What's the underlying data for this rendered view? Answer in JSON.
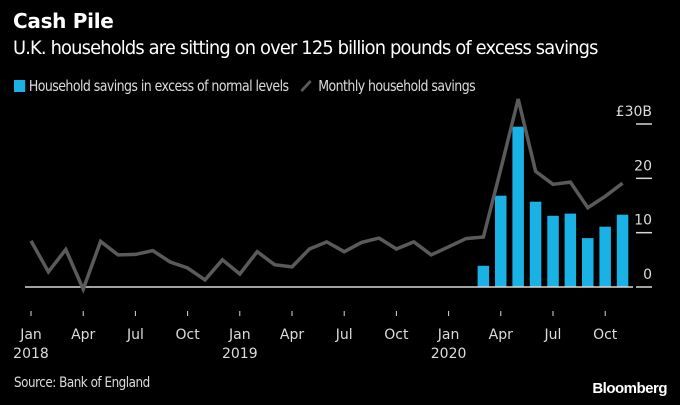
{
  "chart_data": {
    "type": "bar",
    "title": "Cash Pile",
    "subtitle": "U.K. households are sitting on over 125 billion pounds of excess savings",
    "xlabel": "",
    "ylabel": "",
    "ylim": [
      0,
      30
    ],
    "y_axis_position": "right",
    "y_ticks": [
      {
        "value": 30,
        "label": "£30B"
      },
      {
        "value": 20,
        "label": "20"
      },
      {
        "value": 10,
        "label": "10"
      },
      {
        "value": 0,
        "label": "0"
      }
    ],
    "x_ticks": [
      {
        "month_index": 0,
        "label": "Jan",
        "year": "2018"
      },
      {
        "month_index": 3,
        "label": "Apr",
        "year": ""
      },
      {
        "month_index": 6,
        "label": "Jul",
        "year": ""
      },
      {
        "month_index": 9,
        "label": "Oct",
        "year": ""
      },
      {
        "month_index": 12,
        "label": "Jan",
        "year": "2019"
      },
      {
        "month_index": 15,
        "label": "Apr",
        "year": ""
      },
      {
        "month_index": 18,
        "label": "Jul",
        "year": ""
      },
      {
        "month_index": 21,
        "label": "Oct",
        "year": ""
      },
      {
        "month_index": 24,
        "label": "Jan",
        "year": "2020"
      },
      {
        "month_index": 27,
        "label": "Apr",
        "year": ""
      },
      {
        "month_index": 30,
        "label": "Jul",
        "year": ""
      },
      {
        "month_index": 33,
        "label": "Oct",
        "year": ""
      }
    ],
    "x_range_months": [
      "2018-01",
      "2020-11"
    ],
    "legend_position": "top-left",
    "series": [
      {
        "name": "Household savings in excess of normal levels",
        "type": "bar",
        "color": "#1ab1e5",
        "x": [
          "2020-03",
          "2020-04",
          "2020-05",
          "2020-06",
          "2020-07",
          "2020-08",
          "2020-09",
          "2020-10",
          "2020-11"
        ],
        "month_index": [
          26,
          27,
          28,
          29,
          30,
          31,
          32,
          33,
          34
        ],
        "values": [
          3.9,
          16.8,
          29.5,
          15.7,
          13.1,
          13.5,
          9.0,
          11.1,
          13.3
        ]
      },
      {
        "name": "Monthly household savings",
        "type": "line",
        "color": "#5a5a5a",
        "x": [
          "2018-01",
          "2018-02",
          "2018-03",
          "2018-04",
          "2018-05",
          "2018-06",
          "2018-07",
          "2018-08",
          "2018-09",
          "2018-10",
          "2018-11",
          "2018-12",
          "2019-01",
          "2019-02",
          "2019-03",
          "2019-04",
          "2019-05",
          "2019-06",
          "2019-07",
          "2019-08",
          "2019-09",
          "2019-10",
          "2019-11",
          "2019-12",
          "2020-01",
          "2020-02",
          "2020-03",
          "2020-04",
          "2020-05",
          "2020-06",
          "2020-07",
          "2020-08",
          "2020-09",
          "2020-10",
          "2020-11"
        ],
        "values": [
          8.5,
          2.8,
          6.9,
          -0.4,
          8.4,
          5.9,
          6.0,
          6.7,
          4.6,
          3.5,
          1.3,
          5.0,
          2.4,
          6.5,
          4.1,
          3.7,
          7.0,
          8.3,
          6.5,
          8.2,
          9.0,
          7.0,
          8.3,
          5.9,
          7.4,
          8.9,
          9.2,
          21.7,
          34.6,
          21.3,
          18.9,
          19.3,
          14.6,
          16.7,
          19.1
        ]
      }
    ]
  },
  "header": {
    "title": "Cash Pile",
    "subtitle": "U.K. households are sitting on over 125 billion pounds of excess savings"
  },
  "legend": {
    "bar_label": "Household savings in excess of normal levels",
    "line_label": "Monthly household savings"
  },
  "footer": {
    "source": "Source: Bank of England",
    "brand": "Bloomberg"
  },
  "colors": {
    "background": "#000000",
    "bar": "#1ab1e5",
    "line": "#5a5a5a",
    "axis": "#dcdcdc"
  }
}
